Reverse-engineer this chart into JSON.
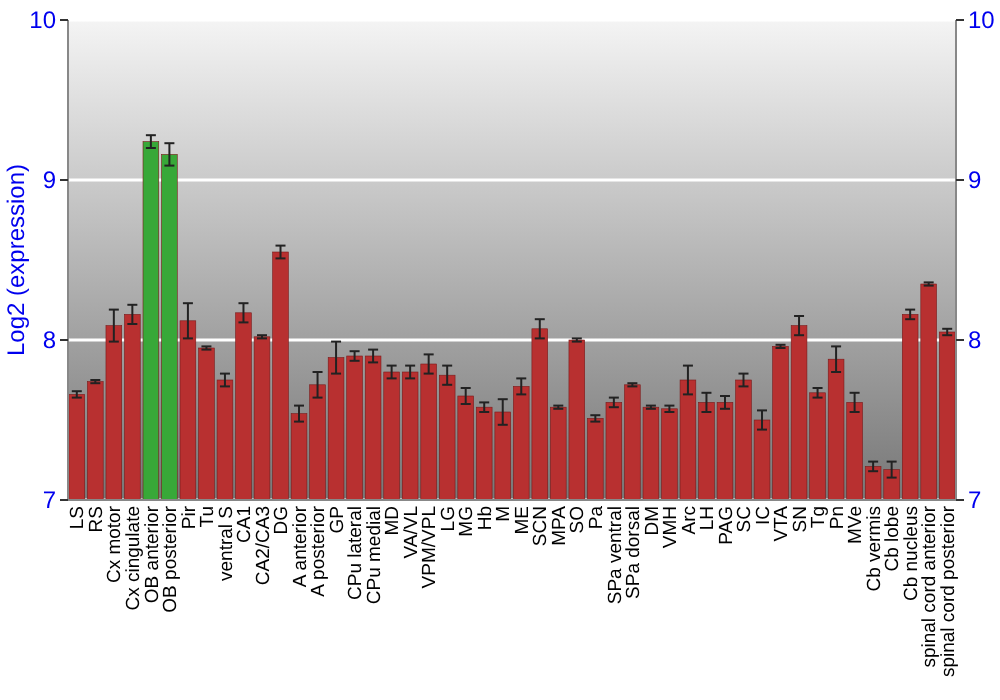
{
  "chart_data": {
    "type": "bar",
    "ylabel": "Log2 (expression)",
    "categories": [
      "LS",
      "RS",
      "Cx motor",
      "Cx cingulate",
      "OB anterior",
      "OB posterior",
      "Pir",
      "Tu",
      "ventral S",
      "CA1",
      "CA2/CA3",
      "DG",
      "A anterior",
      "A posterior",
      "GP",
      "CPu lateral",
      "CPu medial",
      "MD",
      "VA/VL",
      "VPM/VPL",
      "LG",
      "MG",
      "Hb",
      "M",
      "ME",
      "SCN",
      "MPA",
      "SO",
      "Pa",
      "SPa ventral",
      "SPa dorsal",
      "DM",
      "VMH",
      "Arc",
      "LH",
      "PAG",
      "SC",
      "IC",
      "VTA",
      "SN",
      "Tg",
      "Pn",
      "MVe",
      "Cb vermis",
      "Cb lobe",
      "Cb nucleus",
      "spinal cord anterior",
      "spinal cord posterior"
    ],
    "values": [
      7.66,
      7.74,
      8.09,
      8.16,
      9.24,
      9.16,
      8.12,
      7.95,
      7.75,
      8.17,
      8.02,
      8.55,
      7.54,
      7.72,
      7.89,
      7.9,
      7.9,
      7.8,
      7.8,
      7.85,
      7.78,
      7.65,
      7.58,
      7.55,
      7.71,
      8.07,
      7.58,
      8.0,
      7.51,
      7.61,
      7.72,
      7.58,
      7.57,
      7.75,
      7.61,
      7.61,
      7.75,
      7.5,
      7.96,
      8.09,
      7.67,
      7.88,
      7.61,
      7.21,
      7.19,
      8.16,
      8.35,
      8.05
    ],
    "errors": [
      0.02,
      0.01,
      0.1,
      0.06,
      0.04,
      0.07,
      0.11,
      0.01,
      0.04,
      0.06,
      0.01,
      0.04,
      0.05,
      0.08,
      0.1,
      0.03,
      0.04,
      0.04,
      0.04,
      0.06,
      0.06,
      0.05,
      0.03,
      0.08,
      0.05,
      0.06,
      0.01,
      0.01,
      0.02,
      0.03,
      0.01,
      0.01,
      0.02,
      0.09,
      0.06,
      0.04,
      0.04,
      0.06,
      0.01,
      0.06,
      0.03,
      0.08,
      0.06,
      0.03,
      0.05,
      0.03,
      0.01,
      0.02
    ],
    "colors": [
      "#b83030",
      "#b83030",
      "#b83030",
      "#b83030",
      "#38a838",
      "#38a838",
      "#b83030",
      "#b83030",
      "#b83030",
      "#b83030",
      "#b83030",
      "#b83030",
      "#b83030",
      "#b83030",
      "#b83030",
      "#b83030",
      "#b83030",
      "#b83030",
      "#b83030",
      "#b83030",
      "#b83030",
      "#b83030",
      "#b83030",
      "#b83030",
      "#b83030",
      "#b83030",
      "#b83030",
      "#b83030",
      "#b83030",
      "#b83030",
      "#b83030",
      "#b83030",
      "#b83030",
      "#b83030",
      "#b83030",
      "#b83030",
      "#b83030",
      "#b83030",
      "#b83030",
      "#b83030",
      "#b83030",
      "#b83030",
      "#b83030",
      "#b83030",
      "#b83030",
      "#b83030",
      "#b83030",
      "#b83030"
    ],
    "ylim": [
      7,
      10
    ],
    "yticks": [
      7,
      8,
      9,
      10
    ],
    "y2lim": [
      7,
      10
    ],
    "y2ticks": [
      7,
      8,
      9,
      10
    ],
    "grid": "y"
  }
}
